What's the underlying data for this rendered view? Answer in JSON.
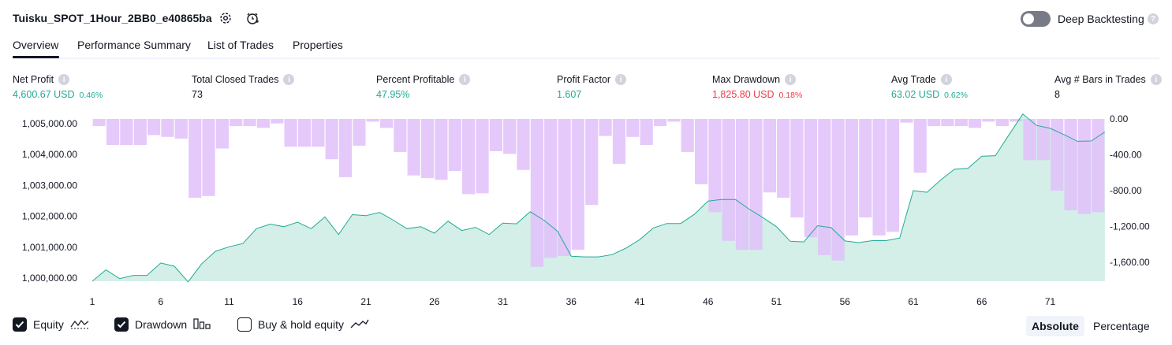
{
  "header": {
    "title": "Tuisku_SPOT_1Hour_2BB0_e40865ba",
    "deep_backtesting_label": "Deep Backtesting",
    "deep_backtesting_enabled": false
  },
  "tabs": [
    {
      "label": "Overview",
      "active": true
    },
    {
      "label": "Performance Summary",
      "active": false
    },
    {
      "label": "List of Trades",
      "active": false
    },
    {
      "label": "Properties",
      "active": false
    }
  ],
  "metrics": [
    {
      "label": "Net Profit",
      "value": "4,600.67 USD",
      "pct": "0.46%",
      "tone": "green"
    },
    {
      "label": "Total Closed Trades",
      "value": "73",
      "pct": "",
      "tone": "dark"
    },
    {
      "label": "Percent Profitable",
      "value": "47.95%",
      "pct": "",
      "tone": "green"
    },
    {
      "label": "Profit Factor",
      "value": "1.607",
      "pct": "",
      "tone": "green"
    },
    {
      "label": "Max Drawdown",
      "value": "1,825.80 USD",
      "pct": "0.18%",
      "tone": "red"
    },
    {
      "label": "Avg Trade",
      "value": "63.02 USD",
      "pct": "0.62%",
      "tone": "green"
    },
    {
      "label": "Avg # Bars in Trades",
      "value": "8",
      "pct": "",
      "tone": "dark"
    }
  ],
  "colors": {
    "equity_line": "#22ab94",
    "equity_fill": "#d3efe8",
    "drawdown_bar": "#e1bffa",
    "positive": "#22ab94",
    "negative": "#f23645"
  },
  "chart_data": {
    "type": "area",
    "x_ticks": [
      "1",
      "6",
      "11",
      "16",
      "21",
      "26",
      "31",
      "36",
      "41",
      "46",
      "51",
      "56",
      "61",
      "66",
      "71"
    ],
    "left_axis": {
      "ticks": [
        "1,005,000.00",
        "1,004,000.00",
        "1,003,000.00",
        "1,002,000.00",
        "1,001,000.00",
        "1,000,000.00"
      ],
      "range": [
        1000000,
        1005000
      ]
    },
    "right_axis": {
      "ticks": [
        "0.00",
        "-400.00",
        "-800.00",
        "-1,200.00",
        "-1,600.00"
      ],
      "range": [
        0,
        -1800
      ]
    },
    "series": [
      {
        "name": "Equity",
        "values": [
          1000000,
          1000350,
          1000080,
          1000180,
          1000180,
          1000560,
          1000460,
          999980,
          1000540,
          1000920,
          1001060,
          1001160,
          1001620,
          1001760,
          1001680,
          1001820,
          1001620,
          1001980,
          1001440,
          1002050,
          1002020,
          1002120,
          1001880,
          1001620,
          1001680,
          1001480,
          1001850,
          1001560,
          1001660,
          1001440,
          1001790,
          1001770,
          1002140,
          1001880,
          1001540,
          1000770,
          1000750,
          1000750,
          1000820,
          1001020,
          1001280,
          1001640,
          1001780,
          1001780,
          1002060,
          1002470,
          1002520,
          1002520,
          1002220,
          1001960,
          1001680,
          1001230,
          1001210,
          1001710,
          1001650,
          1001240,
          1001190,
          1001250,
          1001250,
          1001330,
          1002790,
          1002740,
          1003120,
          1003450,
          1003480,
          1003850,
          1003870,
          1004520,
          1005150,
          1004800,
          1004710,
          1004520,
          1004310,
          1004320,
          1004600
        ]
      },
      {
        "name": "Drawdown",
        "values": [
          -80,
          -290,
          -290,
          -290,
          -180,
          -200,
          -220,
          -880,
          -860,
          -330,
          -80,
          -80,
          -100,
          -50,
          -310,
          -310,
          -310,
          -450,
          -650,
          -300,
          -30,
          -100,
          -370,
          -630,
          -660,
          -680,
          -580,
          -840,
          -830,
          -360,
          -390,
          -570,
          -1650,
          -1550,
          -1530,
          -1460,
          -960,
          -190,
          -500,
          -200,
          -290,
          -80,
          -30,
          -370,
          -730,
          -1040,
          -1360,
          -1460,
          -1460,
          -820,
          -880,
          -1100,
          -1320,
          -1520,
          -1580,
          -1300,
          -1100,
          -1300,
          -1260,
          -40,
          -600,
          -80,
          -80,
          -80,
          -100,
          -30,
          -80,
          -30,
          -460,
          -460,
          -800,
          -1020,
          -1060,
          -1040
        ]
      }
    ]
  },
  "legend": [
    {
      "label": "Equity",
      "checked": true,
      "icon": "equity-icon"
    },
    {
      "label": "Drawdown",
      "checked": true,
      "icon": "drawdown-icon"
    },
    {
      "label": "Buy & hold equity",
      "checked": false,
      "icon": "buy-hold-icon"
    }
  ],
  "view_buttons": [
    {
      "label": "Absolute",
      "active": true
    },
    {
      "label": "Percentage",
      "active": false
    }
  ]
}
